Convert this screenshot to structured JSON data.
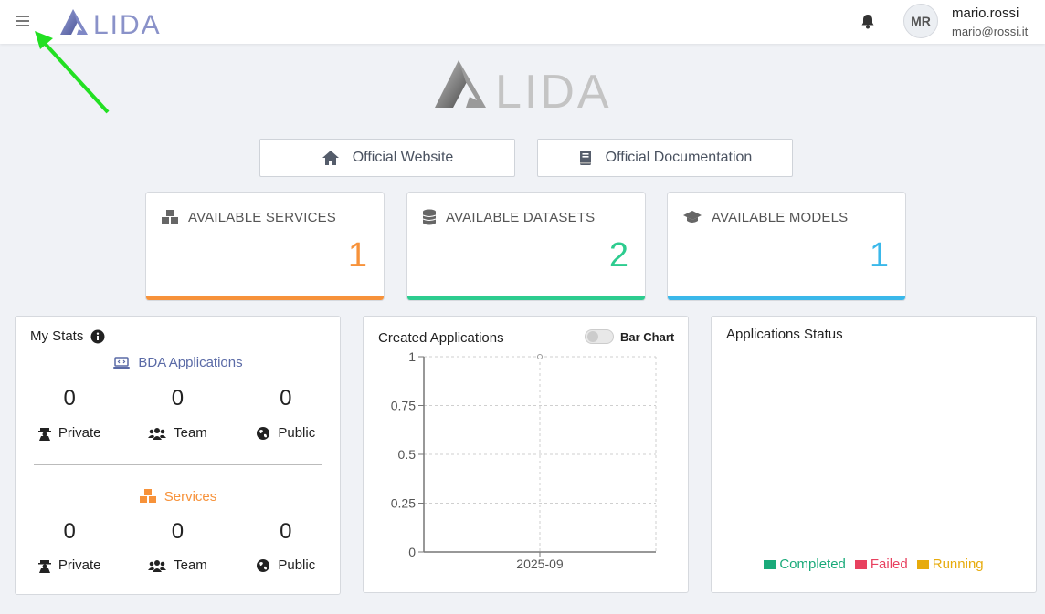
{
  "header": {
    "brand": "LIDA",
    "user_initials": "MR",
    "user_name": "mario.rossi",
    "user_email": "mario@rossi.it"
  },
  "hero": {
    "brand": "LIDA"
  },
  "links": {
    "website": "Official Website",
    "documentation": "Official Documentation"
  },
  "cards": {
    "services": {
      "label": "AVAILABLE SERVICES",
      "value": "1",
      "color": "#f7923a"
    },
    "datasets": {
      "label": "AVAILABLE DATASETS",
      "value": "2",
      "color": "#2dcc8f"
    },
    "models": {
      "label": "AVAILABLE MODELS",
      "value": "1",
      "color": "#3ab8ea"
    }
  },
  "my_stats": {
    "title": "My Stats",
    "bda": {
      "heading": "BDA Applications",
      "private": "0",
      "team": "0",
      "public": "0"
    },
    "services": {
      "heading": "Services",
      "private": "0",
      "team": "0",
      "public": "0"
    },
    "labels": {
      "private": "Private",
      "team": "Team",
      "public": "Public"
    }
  },
  "created_apps": {
    "title": "Created Applications",
    "toggle_label": "Bar Chart",
    "toggle_on": false
  },
  "chart_data": {
    "type": "line",
    "x": [
      "2025-09"
    ],
    "series": [
      {
        "values": [
          1
        ]
      }
    ],
    "ylim": [
      0,
      1
    ],
    "yticks": [
      0,
      0.25,
      0.5,
      0.75,
      1
    ],
    "ytick_labels": [
      "0",
      "0.25",
      "0.5",
      "0.75",
      "1"
    ],
    "grid": true,
    "title": "",
    "xlabel": "",
    "ylabel": ""
  },
  "app_status": {
    "title": "Applications Status",
    "legend": [
      {
        "label": "Completed",
        "color": "#1aaa7a"
      },
      {
        "label": "Failed",
        "color": "#e8415f"
      },
      {
        "label": "Running",
        "color": "#e7ab0c"
      }
    ]
  }
}
